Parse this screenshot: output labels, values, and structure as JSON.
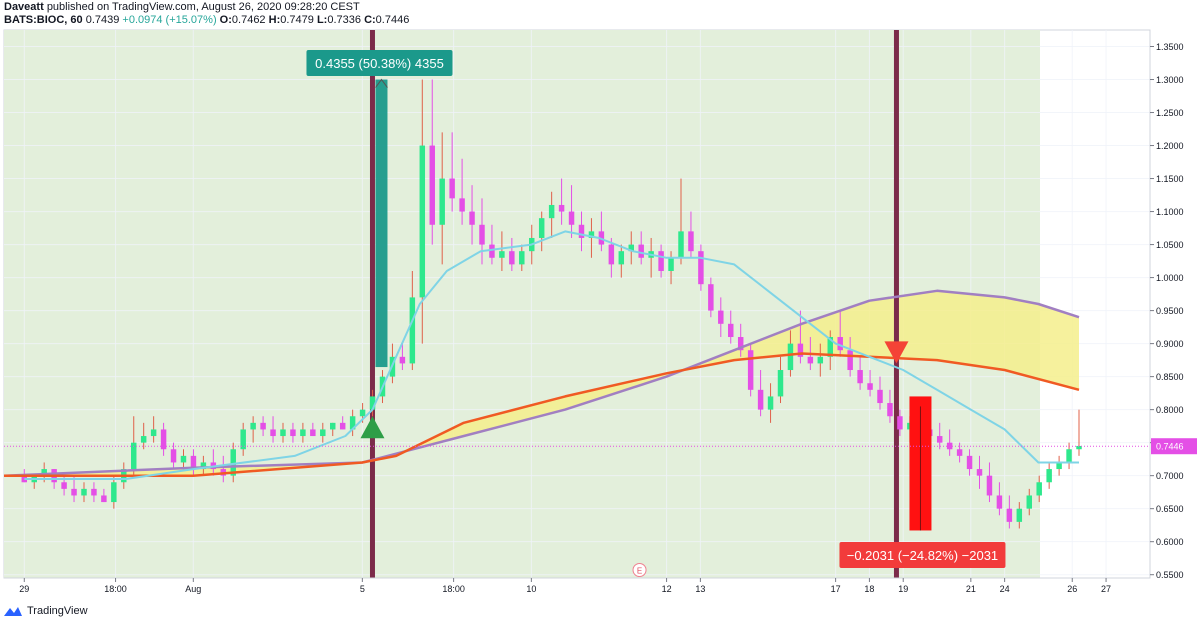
{
  "header": {
    "author": "Daveatt",
    "published": "published on TradingView.com, August 26, 2020 09:28:20 CEST",
    "symbol": "BATS:BIOC, 60",
    "last": "0.7439",
    "change": "+0.0974 (+15.07%)",
    "o_label": "O:",
    "o_val": "0.7462",
    "h_label": "H:",
    "h_val": "0.7479",
    "l_label": "L:",
    "l_val": "0.7336",
    "c_label": "C:",
    "c_val": "0.7446"
  },
  "footer": {
    "brand": "TradingView"
  },
  "colors": {
    "bg_green": "#e3efdb",
    "bull": "#2ee88d",
    "bear": "#e44fe6",
    "fast_ma": "#7fd4e6",
    "slow_ma": "#f05a23",
    "curve_ma": "#a17fc2",
    "cloud": "#f5ee8c",
    "vline": "#7c2b4a",
    "long": "#1b998b",
    "short": "#ff1111"
  },
  "chart_data": {
    "type": "candlestick",
    "title": "",
    "y_ticks": [
      "1.3500",
      "1.3000",
      "1.2500",
      "1.2000",
      "1.1500",
      "1.1000",
      "1.0500",
      "1.0000",
      "0.9500",
      "0.9000",
      "0.8500",
      "0.8000",
      "0.7500",
      "0.7000",
      "0.6500",
      "0.6000",
      "0.5500"
    ],
    "ylim": [
      0.545,
      1.375
    ],
    "x_ticks": [
      {
        "label": "29",
        "x": 0.0
      },
      {
        "label": "18:00",
        "x": 2.7
      },
      {
        "label": "Aug",
        "x": 5.0
      },
      {
        "label": "5",
        "x": 10.0
      },
      {
        "label": "18:00",
        "x": 12.7
      },
      {
        "label": "10",
        "x": 15.0
      },
      {
        "label": "12",
        "x": 19.0
      },
      {
        "label": "13",
        "x": 20.0
      },
      {
        "label": "17",
        "x": 24.0
      },
      {
        "label": "18",
        "x": 25.0
      },
      {
        "label": "19",
        "x": 26.0
      },
      {
        "label": "21",
        "x": 28.0
      },
      {
        "label": "24",
        "x": 29.0
      },
      {
        "label": "26",
        "x": 31.0
      },
      {
        "label": "27",
        "x": 32.0
      }
    ],
    "xlim": [
      -0.6,
      33.3
    ],
    "last_price": "0.7446",
    "last_price_value": 0.7446,
    "candles": [
      [
        0.7,
        0.71,
        0.69,
        0.69
      ],
      [
        0.69,
        0.7,
        0.68,
        0.7
      ],
      [
        0.7,
        0.72,
        0.69,
        0.71
      ],
      [
        0.71,
        0.71,
        0.68,
        0.69
      ],
      [
        0.69,
        0.7,
        0.67,
        0.68
      ],
      [
        0.68,
        0.7,
        0.66,
        0.67
      ],
      [
        0.67,
        0.69,
        0.66,
        0.68
      ],
      [
        0.68,
        0.69,
        0.66,
        0.67
      ],
      [
        0.67,
        0.68,
        0.66,
        0.66
      ],
      [
        0.66,
        0.7,
        0.65,
        0.69
      ],
      [
        0.69,
        0.72,
        0.68,
        0.71
      ],
      [
        0.71,
        0.79,
        0.7,
        0.75
      ],
      [
        0.75,
        0.78,
        0.74,
        0.76
      ],
      [
        0.76,
        0.79,
        0.75,
        0.77
      ],
      [
        0.77,
        0.78,
        0.73,
        0.74
      ],
      [
        0.74,
        0.75,
        0.71,
        0.72
      ],
      [
        0.72,
        0.74,
        0.71,
        0.73
      ],
      [
        0.73,
        0.74,
        0.7,
        0.71
      ],
      [
        0.71,
        0.73,
        0.7,
        0.72
      ],
      [
        0.72,
        0.74,
        0.7,
        0.71
      ],
      [
        0.71,
        0.73,
        0.69,
        0.7
      ],
      [
        0.7,
        0.75,
        0.69,
        0.74
      ],
      [
        0.74,
        0.78,
        0.73,
        0.77
      ],
      [
        0.77,
        0.79,
        0.75,
        0.78
      ],
      [
        0.78,
        0.79,
        0.76,
        0.77
      ],
      [
        0.77,
        0.79,
        0.75,
        0.76
      ],
      [
        0.76,
        0.78,
        0.75,
        0.77
      ],
      [
        0.77,
        0.78,
        0.75,
        0.76
      ],
      [
        0.76,
        0.78,
        0.75,
        0.77
      ],
      [
        0.77,
        0.78,
        0.76,
        0.76
      ],
      [
        0.76,
        0.78,
        0.75,
        0.77
      ],
      [
        0.77,
        0.78,
        0.76,
        0.78
      ],
      [
        0.78,
        0.79,
        0.77,
        0.77
      ],
      [
        0.77,
        0.8,
        0.76,
        0.79
      ],
      [
        0.79,
        0.81,
        0.78,
        0.8
      ],
      [
        0.8,
        0.83,
        0.79,
        0.82
      ],
      [
        0.82,
        0.86,
        0.81,
        0.85
      ],
      [
        0.85,
        0.9,
        0.84,
        0.88
      ],
      [
        0.88,
        0.9,
        0.86,
        0.87
      ],
      [
        0.87,
        1.01,
        0.86,
        0.97
      ],
      [
        0.97,
        1.3,
        0.9,
        1.2
      ],
      [
        1.2,
        1.3,
        1.05,
        1.08
      ],
      [
        1.08,
        1.22,
        1.02,
        1.15
      ],
      [
        1.15,
        1.22,
        1.1,
        1.12
      ],
      [
        1.12,
        1.18,
        1.08,
        1.1
      ],
      [
        1.1,
        1.14,
        1.05,
        1.08
      ],
      [
        1.08,
        1.12,
        1.02,
        1.05
      ],
      [
        1.05,
        1.08,
        1.02,
        1.03
      ],
      [
        1.03,
        1.07,
        1.01,
        1.04
      ],
      [
        1.04,
        1.06,
        1.01,
        1.02
      ],
      [
        1.02,
        1.05,
        1.01,
        1.04
      ],
      [
        1.04,
        1.08,
        1.02,
        1.06
      ],
      [
        1.06,
        1.1,
        1.04,
        1.09
      ],
      [
        1.09,
        1.13,
        1.06,
        1.11
      ],
      [
        1.11,
        1.15,
        1.08,
        1.1
      ],
      [
        1.1,
        1.14,
        1.06,
        1.08
      ],
      [
        1.08,
        1.1,
        1.04,
        1.06
      ],
      [
        1.06,
        1.09,
        1.03,
        1.07
      ],
      [
        1.07,
        1.1,
        1.04,
        1.05
      ],
      [
        1.05,
        1.06,
        1.0,
        1.02
      ],
      [
        1.02,
        1.05,
        1.0,
        1.04
      ],
      [
        1.04,
        1.07,
        1.02,
        1.05
      ],
      [
        1.05,
        1.07,
        1.02,
        1.03
      ],
      [
        1.03,
        1.06,
        1.0,
        1.04
      ],
      [
        1.04,
        1.05,
        1.0,
        1.01
      ],
      [
        1.01,
        1.04,
        0.99,
        1.03
      ],
      [
        1.03,
        1.15,
        1.02,
        1.07
      ],
      [
        1.07,
        1.1,
        1.03,
        1.04
      ],
      [
        1.04,
        1.05,
        0.98,
        0.99
      ],
      [
        0.99,
        1.0,
        0.94,
        0.95
      ],
      [
        0.95,
        0.97,
        0.91,
        0.93
      ],
      [
        0.93,
        0.95,
        0.9,
        0.91
      ],
      [
        0.91,
        0.93,
        0.88,
        0.89
      ],
      [
        0.89,
        0.9,
        0.82,
        0.83
      ],
      [
        0.83,
        0.86,
        0.79,
        0.8
      ],
      [
        0.8,
        0.84,
        0.78,
        0.82
      ],
      [
        0.82,
        0.88,
        0.81,
        0.86
      ],
      [
        0.86,
        0.92,
        0.85,
        0.9
      ],
      [
        0.9,
        0.95,
        0.87,
        0.88
      ],
      [
        0.88,
        0.91,
        0.86,
        0.87
      ],
      [
        0.87,
        0.9,
        0.85,
        0.88
      ],
      [
        0.88,
        0.92,
        0.86,
        0.91
      ],
      [
        0.91,
        0.95,
        0.88,
        0.89
      ],
      [
        0.89,
        0.91,
        0.85,
        0.86
      ],
      [
        0.86,
        0.88,
        0.83,
        0.84
      ],
      [
        0.84,
        0.86,
        0.82,
        0.83
      ],
      [
        0.83,
        0.85,
        0.8,
        0.81
      ],
      [
        0.81,
        0.83,
        0.78,
        0.79
      ],
      [
        0.79,
        0.8,
        0.76,
        0.77
      ],
      [
        0.77,
        0.79,
        0.75,
        0.78
      ],
      [
        0.78,
        0.8,
        0.76,
        0.77
      ],
      [
        0.77,
        0.79,
        0.75,
        0.76
      ],
      [
        0.76,
        0.78,
        0.74,
        0.75
      ],
      [
        0.75,
        0.77,
        0.73,
        0.74
      ],
      [
        0.74,
        0.75,
        0.72,
        0.73
      ],
      [
        0.73,
        0.74,
        0.7,
        0.71
      ],
      [
        0.71,
        0.73,
        0.68,
        0.7
      ],
      [
        0.7,
        0.72,
        0.66,
        0.67
      ],
      [
        0.67,
        0.69,
        0.64,
        0.65
      ],
      [
        0.65,
        0.67,
        0.62,
        0.63
      ],
      [
        0.63,
        0.66,
        0.62,
        0.65
      ],
      [
        0.65,
        0.68,
        0.64,
        0.67
      ],
      [
        0.67,
        0.7,
        0.66,
        0.69
      ],
      [
        0.69,
        0.72,
        0.68,
        0.71
      ],
      [
        0.71,
        0.73,
        0.7,
        0.72
      ],
      [
        0.72,
        0.75,
        0.71,
        0.74
      ],
      [
        0.74,
        0.8,
        0.73,
        0.745
      ]
    ],
    "fast_ma": [
      [
        0,
        0.695
      ],
      [
        3,
        0.695
      ],
      [
        5,
        0.71
      ],
      [
        8,
        0.73
      ],
      [
        9.5,
        0.76
      ],
      [
        10.3,
        0.8
      ],
      [
        11,
        0.88
      ],
      [
        11.7,
        0.96
      ],
      [
        12.5,
        1.01
      ],
      [
        13.5,
        1.04
      ],
      [
        15,
        1.05
      ],
      [
        16,
        1.07
      ],
      [
        17,
        1.06
      ],
      [
        18,
        1.04
      ],
      [
        19,
        1.03
      ],
      [
        20,
        1.03
      ],
      [
        21,
        1.02
      ],
      [
        22,
        0.98
      ],
      [
        23,
        0.94
      ],
      [
        24,
        0.9
      ],
      [
        25,
        0.88
      ],
      [
        26,
        0.86
      ],
      [
        27,
        0.83
      ],
      [
        28,
        0.8
      ],
      [
        29,
        0.77
      ],
      [
        30,
        0.72
      ],
      [
        31.2,
        0.72
      ]
    ],
    "slow_ma": [
      [
        -0.6,
        0.7
      ],
      [
        5,
        0.7
      ],
      [
        10,
        0.72
      ],
      [
        11,
        0.73
      ],
      [
        13,
        0.78
      ],
      [
        16,
        0.82
      ],
      [
        19,
        0.855
      ],
      [
        21,
        0.875
      ],
      [
        23,
        0.885
      ],
      [
        25,
        0.88
      ],
      [
        27,
        0.875
      ],
      [
        29,
        0.86
      ],
      [
        31.2,
        0.83
      ]
    ],
    "curve_ma": [
      [
        -0.6,
        0.7
      ],
      [
        5,
        0.712
      ],
      [
        10,
        0.72
      ],
      [
        13,
        0.76
      ],
      [
        16,
        0.8
      ],
      [
        19,
        0.85
      ],
      [
        21,
        0.89
      ],
      [
        23,
        0.93
      ],
      [
        25,
        0.965
      ],
      [
        27,
        0.98
      ],
      [
        29,
        0.97
      ],
      [
        30,
        0.96
      ],
      [
        31.2,
        0.94
      ]
    ],
    "signals": {
      "long_x": 10.3,
      "long_price": 0.79,
      "short_x": 25.8,
      "short_price": 0.87
    },
    "long_measure": {
      "label": "0.4355 (50.38%) 4355",
      "from": 0.8645,
      "to": 1.3
    },
    "short_measure": {
      "label": "−0.2031 (−24.82%) −2031",
      "from": 0.82,
      "to": 0.617
    },
    "earnings_marker": "E",
    "earnings_x": 18.2
  }
}
